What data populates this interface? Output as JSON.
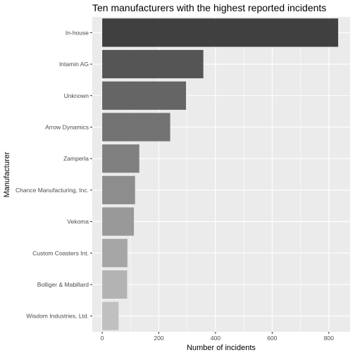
{
  "chart_data": {
    "type": "bar",
    "orientation": "horizontal",
    "title": "Ten manufacturers with the highest reported incidents",
    "xlabel": "Number of incidents",
    "ylabel": "Manufacturer",
    "categories": [
      "In-house",
      "Intamin AG",
      "Unknown",
      "Arrow Dynamics",
      "Zamperla",
      "Chance Manufacturing, Inc.",
      "Vekoma",
      "Custom Coasters Int.",
      "Bolliger & Mabillard",
      "Wisdom Industries, Ltd."
    ],
    "values": [
      833,
      357,
      296,
      240,
      131,
      116,
      112,
      89,
      88,
      58
    ],
    "xlim": [
      -35,
      875
    ],
    "xticks": [
      0,
      200,
      400,
      600,
      800
    ],
    "xtick_labels": [
      "0",
      "200",
      "400",
      "600",
      "800"
    ],
    "grid": true,
    "legend": "none",
    "bar_colors": [
      "#404040",
      "#555555",
      "#656565",
      "#737373",
      "#808080",
      "#8d8d8d",
      "#999999",
      "#a6a6a6",
      "#b3b3b3",
      "#c0c0c0"
    ],
    "panel_background": "#ebebeb",
    "grid_color": "#ffffff"
  }
}
